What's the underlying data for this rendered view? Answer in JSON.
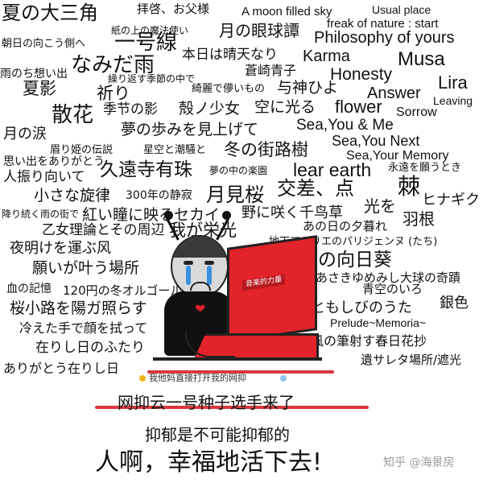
{
  "words": [
    "夏の大三角",
    "拝啓、お父様",
    "A moon filled sky",
    "Usual place",
    "紙の上の魔法使い",
    "一号線",
    "月の眼球譚",
    "freak of nature : start",
    "朝日の向こう側へ",
    "Philosophy of yours",
    "なみだ雨",
    "本日は晴天なり",
    "Karma",
    "Musa",
    "雨のち想い出",
    "蒼崎青子",
    "Honesty",
    "夏影",
    "繰り返す季節の中で",
    "祈り",
    "綺麗で儚いもの",
    "与神ひよ",
    "Lira",
    "Answer",
    "Leaving",
    "散花",
    "季节の影",
    "殻ノ少女",
    "空に光る",
    "flower",
    "Sorrow",
    "夢の歩みを見上げて",
    "Sea,You & Me",
    "月の涙",
    "Sea,You Next",
    "眉り姫の伝説",
    "星空と潮騒と",
    "冬の街路樹",
    "Sea,Your Memory",
    "思い出をありがとう",
    "久遠寺有珠",
    "夢の中の楽園",
    "lear earth",
    "永遠を願うとき",
    "人振り向いて",
    "交差、点",
    "棘",
    "小さな旋律",
    "300年の静寂",
    "月見桜",
    "降り続く雨の街で",
    "光を",
    "ヒナギク",
    "紅い瞳に映るセカイ",
    "野に咲く千鸟草",
    "羽根",
    "乙女理論とその周辺",
    "我が栄光",
    "あの日の夕暮れ",
    "夜明けを運ぶ风",
    "地下アトリエのパリジェンヌ (たち)",
    "願いが叶う場所",
    "夜の向日葵",
    "あさきゆめみし大球の奇蹟",
    "血の記憶",
    "120円の冬オルゴール",
    "青空のいろ",
    "桜小路を陽ガ照らす",
    "ともしびのうた",
    "銀色",
    "Prelude~Memoria~",
    "冷えた手で顔を拭って",
    "在りし日のふたり",
    "風の筆射す春日花抄",
    "遺サレタ場所/遮光",
    "ありがとう在りし日"
  ],
  "figure": {
    "laptop_label": "音楽的力量"
  },
  "captions": {
    "line1": "我他妈直接打开我的网抑",
    "line2": "网抑云一号种子选手来了",
    "line3": "抑郁是不可能抑郁的",
    "line4": "人啊，幸福地活下去!"
  },
  "watermark": "知乎 @海景房",
  "colors": {
    "strike": "#d9383c",
    "laptop": "#e2242a",
    "tear": "#3b8fe0"
  }
}
